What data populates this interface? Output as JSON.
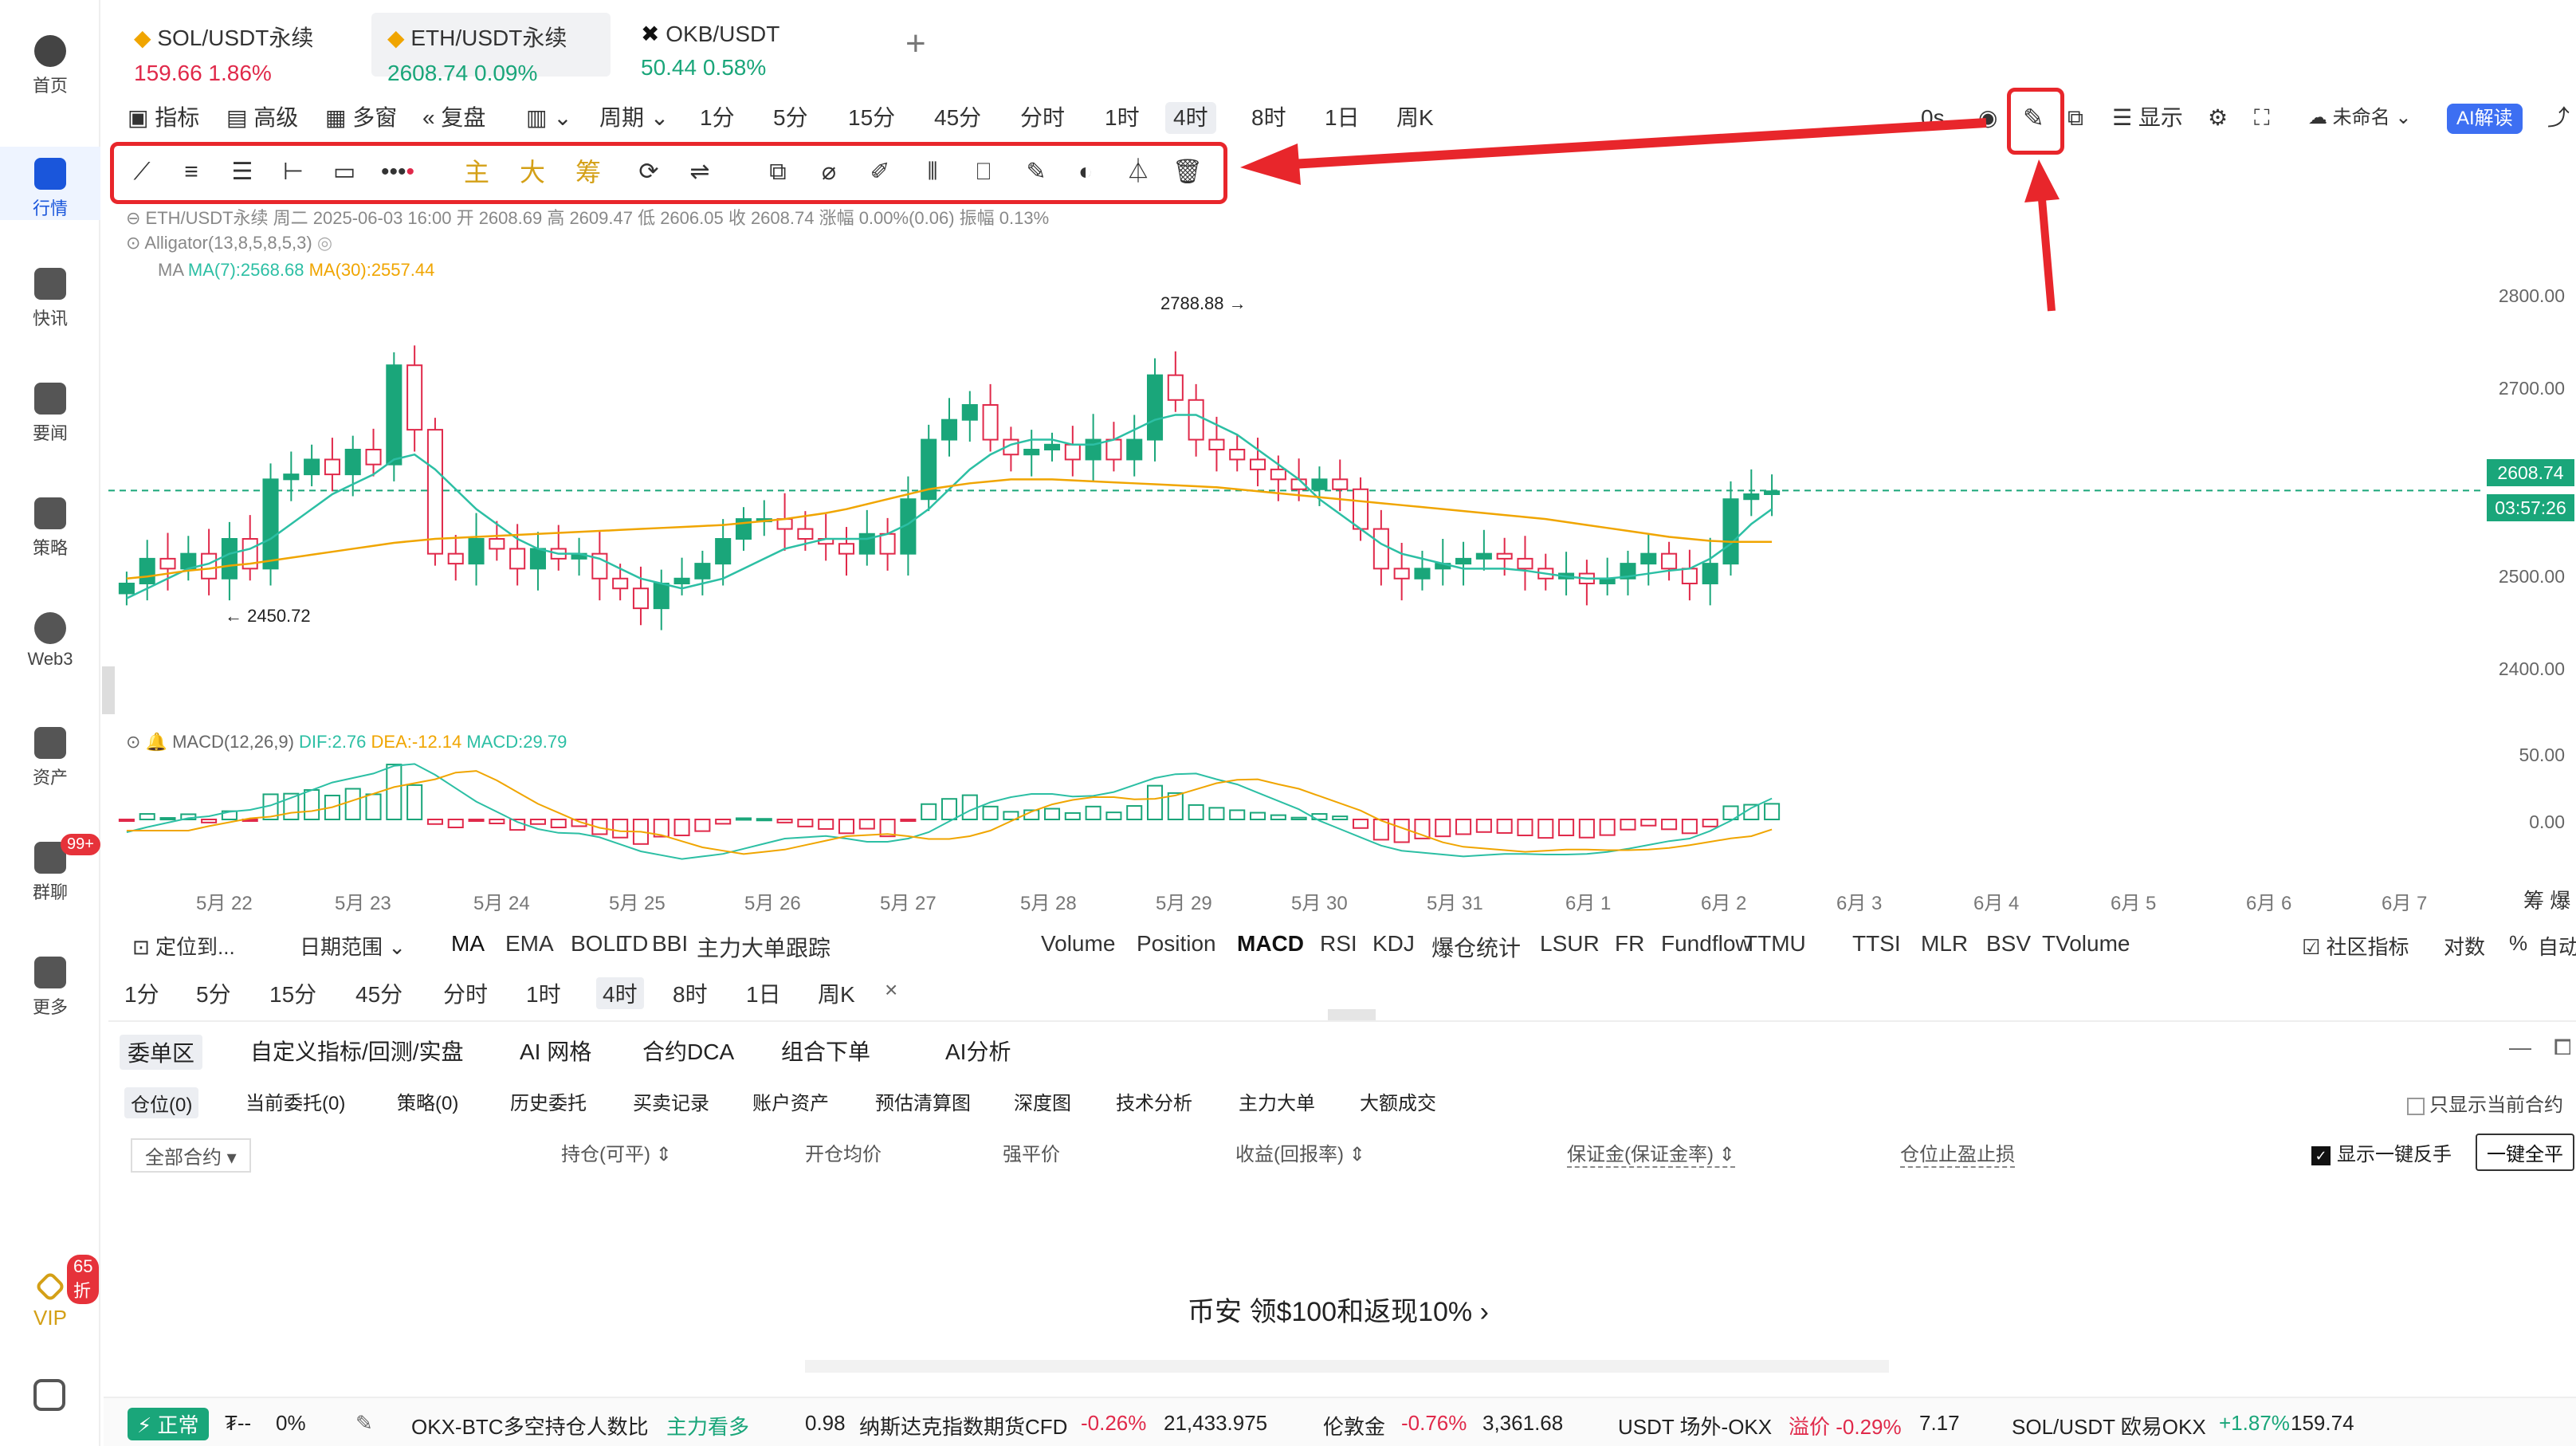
{
  "sidebar": {
    "items": [
      {
        "label": "首页",
        "icon": "home-icon"
      },
      {
        "label": "行情",
        "icon": "market-icon"
      },
      {
        "label": "快讯",
        "icon": "news-icon"
      },
      {
        "label": "要闻",
        "icon": "headline-icon"
      },
      {
        "label": "策略",
        "icon": "robot-icon"
      },
      {
        "label": "Web3",
        "icon": "web3-icon"
      },
      {
        "label": "资产",
        "icon": "wallet-icon"
      },
      {
        "label": "群聊",
        "icon": "chat-icon"
      },
      {
        "label": "更多",
        "icon": "grid-icon"
      },
      {
        "label": "VIP",
        "icon": "vip-icon"
      }
    ],
    "chat_badge": "99+",
    "vip_badge": "65折"
  },
  "tabs": [
    {
      "name": "SOL/USDT永续",
      "price": "159.66",
      "change": "1.86%"
    },
    {
      "name": "ETH/USDT永续",
      "price": "2608.74",
      "change": "0.09%"
    },
    {
      "name": "OKB/USDT",
      "price": "50.44",
      "change": "0.58%"
    }
  ],
  "add_tab": "+",
  "toolbar": {
    "left": [
      "指标",
      "高级",
      "多窗",
      "复盘",
      "周期"
    ],
    "timeframes": [
      "1分",
      "5分",
      "15分",
      "45分",
      "分时",
      "1时",
      "4时",
      "8时",
      "1日",
      "周K"
    ],
    "selected": "4时",
    "right": {
      "timer": "0s",
      "display": "显示",
      "layout": "未命名",
      "ai": "AI解读"
    }
  },
  "drawing_gold": [
    "主",
    "大",
    "筹"
  ],
  "chart_info": {
    "line1": "ETH/USDT永续 周二 2025-06-03 16:00 开 2608.69 高 2609.47 低 2606.05 收 2608.74 涨幅 0.00%(0.06) 振幅 0.13%",
    "alligator": "Alligator(13,8,5,8,5,3)",
    "ma_label": "MA",
    "ma7": "MA(7):2568.68",
    "ma30": "MA(30):2557.44",
    "macd_label": "MACD(12,26,9)",
    "dif": "DIF:2.76",
    "dea": "DEA:-12.14",
    "macd": "MACD:29.79"
  },
  "chart_data": {
    "type": "candlestick",
    "y_ticks": [
      "2800.00",
      "2700.00",
      "2600.00",
      "2500.00",
      "2400.00"
    ],
    "macd_ticks": [
      "50.00",
      "0.00"
    ],
    "x_ticks": [
      "5月 22",
      "5月 23",
      "5月 24",
      "5月 25",
      "5月 26",
      "5月 27",
      "5月 28",
      "5月 29",
      "5月 30",
      "5月 31",
      "6月 1",
      "6月 2",
      "6月 3",
      "6月 4",
      "6月 5",
      "6月 6",
      "6月 7"
    ],
    "high_label": "2788.88",
    "low_label": "2450.72",
    "last_price": "2608.74",
    "countdown": "03:57:26",
    "closes": [
      2515,
      2540,
      2530,
      2545,
      2520,
      2560,
      2530,
      2620,
      2625,
      2640,
      2625,
      2650,
      2635,
      2735,
      2670,
      2545,
      2535,
      2560,
      2550,
      2530,
      2550,
      2540,
      2545,
      2520,
      2510,
      2490,
      2515,
      2520,
      2535,
      2560,
      2580,
      2580,
      2570,
      2560,
      2555,
      2545,
      2565,
      2545,
      2600,
      2660,
      2680,
      2695,
      2660,
      2645,
      2650,
      2655,
      2640,
      2660,
      2640,
      2660,
      2725,
      2700,
      2660,
      2650,
      2640,
      2630,
      2620,
      2610,
      2620,
      2610,
      2570,
      2530,
      2520,
      2530,
      2535,
      2540,
      2545,
      2540,
      2530,
      2520,
      2525,
      2515,
      2520,
      2535,
      2545,
      2530,
      2515,
      2535,
      2600,
      2605,
      2608
    ],
    "ma7": [
      2500,
      2510,
      2520,
      2530,
      2535,
      2545,
      2550,
      2560,
      2575,
      2590,
      2605,
      2615,
      2625,
      2640,
      2645,
      2630,
      2610,
      2590,
      2575,
      2560,
      2550,
      2545,
      2545,
      2540,
      2530,
      2520,
      2515,
      2510,
      2515,
      2520,
      2530,
      2540,
      2550,
      2555,
      2560,
      2560,
      2560,
      2565,
      2575,
      2590,
      2610,
      2630,
      2645,
      2655,
      2660,
      2660,
      2655,
      2655,
      2660,
      2670,
      2680,
      2685,
      2685,
      2675,
      2665,
      2650,
      2635,
      2620,
      2600,
      2585,
      2570,
      2555,
      2545,
      2540,
      2535,
      2530,
      2530,
      2530,
      2528,
      2525,
      2522,
      2520,
      2520,
      2522,
      2525,
      2528,
      2530,
      2540,
      2555,
      2575,
      2590
    ],
    "ma30": [
      2520,
      2522,
      2525,
      2528,
      2530,
      2533,
      2535,
      2538,
      2541,
      2544,
      2547,
      2550,
      2553,
      2556,
      2558,
      2560,
      2561,
      2562,
      2563,
      2564,
      2565,
      2566,
      2567,
      2568,
      2569,
      2570,
      2571,
      2572,
      2573,
      2574,
      2576,
      2578,
      2580,
      2583,
      2586,
      2590,
      2595,
      2600,
      2605,
      2610,
      2613,
      2616,
      2618,
      2620,
      2620,
      2620,
      2619,
      2618,
      2617,
      2616,
      2615,
      2614,
      2613,
      2612,
      2610,
      2608,
      2606,
      2604,
      2602,
      2600,
      2598,
      2596,
      2594,
      2592,
      2590,
      2588,
      2586,
      2584,
      2582,
      2580,
      2577,
      2574,
      2571,
      2568,
      2565,
      2562,
      2560,
      2558,
      2557,
      2557,
      2557
    ]
  },
  "indicators": {
    "locate": "定位到...",
    "range": "日期范围",
    "main": [
      "MA",
      "EMA",
      "BOLL",
      "TD",
      "BBI",
      "主力大单跟踪"
    ],
    "sub": [
      "Volume",
      "Position",
      "MACD",
      "RSI",
      "KDJ",
      "爆仓统计",
      "LSUR",
      "FR",
      "Fundflow",
      "TTMU",
      "TTSI",
      "MLR",
      "BSV",
      "TVolume"
    ],
    "right": [
      "社区指标",
      "对数",
      "%",
      "自动"
    ],
    "side_label": "筹 爆"
  },
  "timeframes2": [
    "1分",
    "5分",
    "15分",
    "45分",
    "分时",
    "1时",
    "4时",
    "8时",
    "1日",
    "周K"
  ],
  "close_x": "×",
  "bottom_tabs": [
    "委单区",
    "自定义指标/回测/实盘",
    "AI 网格",
    "合约DCA",
    "组合下单",
    "AI分析"
  ],
  "sub_tabs": [
    "仓位(0)",
    "当前委托(0)",
    "策略(0)",
    "历史委托",
    "买卖记录",
    "账户资产",
    "预估清算图",
    "深度图",
    "技术分析",
    "主力大单",
    "大额成交"
  ],
  "only_current": "只显示当前合约",
  "table_cols": [
    "全部合约",
    "持仓(可平)",
    "开仓均价",
    "强平价",
    "收益(回报率)",
    "保证金(保证金率)",
    "仓位止盈止损"
  ],
  "one_click": "显示一键反手",
  "close_all": "一键全平",
  "promo": "币安 领$100和返现10%",
  "footer": {
    "status": "正常",
    "currency": "₮--",
    "pct": "0%",
    "items": [
      {
        "t": "OKX-BTC多空持仓人数比",
        "a": "主力看多",
        "b": "0.98"
      },
      {
        "t": "纳斯达克指数期货CFD",
        "a": "-0.26%",
        "b": "21,433.975"
      },
      {
        "t": "伦敦金",
        "a": "-0.76%",
        "b": "3,361.68"
      },
      {
        "t": "USDT 场外-OKX",
        "a": "溢价 -0.29%",
        "b": "7.17"
      },
      {
        "t": "SOL/USDT 欧易OKX",
        "a": "+1.87%",
        "b": "159.74"
      }
    ]
  },
  "colors": {
    "up": "#1aa67a",
    "down": "#e0294a",
    "ma7": "#2cbfa4",
    "ma30": "#f0a500",
    "highlight": "#e8262b"
  }
}
